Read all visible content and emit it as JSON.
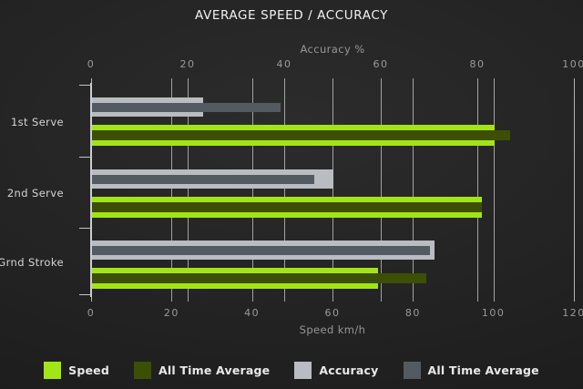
{
  "chart_data": {
    "type": "bar",
    "orientation": "horizontal",
    "title": "AVERAGE SPEED / ACCURACY",
    "categories": [
      "1st Serve",
      "2nd Serve",
      "Grnd Stroke"
    ],
    "series": [
      {
        "name": "Speed",
        "axis": "bottom",
        "style": "thick",
        "color": "#a2e517",
        "values": [
          100,
          97,
          71
        ]
      },
      {
        "name": "All Time Average",
        "axis": "bottom",
        "style": "thin",
        "color": "#3c4f05",
        "values": [
          104,
          97,
          83
        ]
      },
      {
        "name": "Accuracy",
        "axis": "top",
        "style": "thick",
        "color": "#b9bdc2",
        "values": [
          23,
          50,
          71
        ]
      },
      {
        "name": "All Time Average",
        "axis": "top",
        "style": "thin",
        "color": "#545a62",
        "values": [
          39,
          46,
          70
        ]
      }
    ],
    "axes": {
      "top": {
        "label": "Accuracy %",
        "min": 0,
        "max": 100,
        "ticks": [
          0,
          20,
          40,
          60,
          80,
          100
        ]
      },
      "bottom": {
        "label": "Speed km/h",
        "min": 0,
        "max": 120,
        "ticks": [
          0,
          20,
          40,
          60,
          80,
          100,
          120
        ]
      }
    },
    "grid": true,
    "legend_position": "bottom"
  },
  "legend": [
    {
      "label": "Speed",
      "color": "#a2e517"
    },
    {
      "label": "All Time Average",
      "color": "#3c4f05"
    },
    {
      "label": "Accuracy",
      "color": "#b9bdc2"
    },
    {
      "label": "All Time Average",
      "color": "#545a62"
    }
  ],
  "colors": {
    "background_center": "#2c2c2c",
    "background_edge": "#1a1a1a",
    "gridline": "#b7b7b7",
    "axis_text": "#9a9a9a",
    "title_text": "#f1f1f1",
    "category_text": "#d5d5d5",
    "legend_text": "#e9e9e9"
  }
}
